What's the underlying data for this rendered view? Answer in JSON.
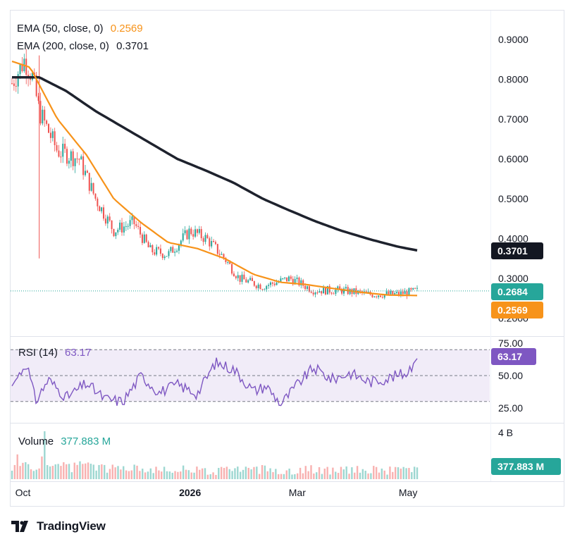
{
  "chart_data": [
    {
      "type": "candlestick",
      "panel": "price",
      "yaxis_ticks": [
        "0.9000",
        "0.8000",
        "0.7000",
        "0.6000",
        "0.5000",
        "0.4000",
        "0.3000",
        "0.2000"
      ],
      "ylim": [
        0.2,
        0.9
      ],
      "last_price": 0.2684,
      "last_price_label": "0.2684",
      "series": [
        {
          "name": "EMA (50, close, 0)",
          "label": "EMA (50, close, 0)",
          "value_label": "0.2569",
          "value": 0.2569,
          "color": "#f7931a",
          "x": [
            "2025-09-25",
            "2025-10-05",
            "2025-10-20",
            "2025-11-05",
            "2025-11-20",
            "2025-12-05",
            "2025-12-20",
            "2026-01-05",
            "2026-01-20",
            "2026-02-05",
            "2026-02-20",
            "2026-03-05",
            "2026-03-20",
            "2026-04-05",
            "2026-04-20",
            "2026-05-06"
          ],
          "values": [
            0.845,
            0.83,
            0.7,
            0.61,
            0.5,
            0.44,
            0.39,
            0.375,
            0.35,
            0.31,
            0.29,
            0.285,
            0.275,
            0.265,
            0.258,
            0.2569
          ]
        },
        {
          "name": "EMA (200, close, 0)",
          "label": "EMA (200, close, 0)",
          "value_label": "0.3701",
          "value": 0.3701,
          "color": "#1e222d",
          "x": [
            "2025-09-25",
            "2025-10-10",
            "2025-10-25",
            "2025-11-10",
            "2025-11-25",
            "2025-12-10",
            "2025-12-25",
            "2026-01-10",
            "2026-01-25",
            "2026-02-10",
            "2026-02-25",
            "2026-03-10",
            "2026-03-25",
            "2026-04-10",
            "2026-04-25",
            "2026-05-06"
          ],
          "values": [
            0.805,
            0.805,
            0.77,
            0.72,
            0.68,
            0.64,
            0.6,
            0.57,
            0.54,
            0.5,
            0.47,
            0.445,
            0.42,
            0.398,
            0.38,
            0.3701
          ]
        }
      ],
      "candles_summary": {
        "x": [
          "2025-09-25",
          "2025-10-02",
          "2025-10-06",
          "2025-10-10",
          "2025-10-20",
          "2025-11-01",
          "2025-11-10",
          "2025-11-20",
          "2025-12-01",
          "2025-12-10",
          "2025-12-20",
          "2026-01-01",
          "2026-01-10",
          "2026-01-20",
          "2026-01-28",
          "2026-02-10",
          "2026-02-25",
          "2026-03-10",
          "2026-03-25",
          "2026-04-10",
          "2026-04-25",
          "2026-05-06"
        ],
        "close": [
          0.79,
          0.85,
          0.81,
          0.72,
          0.62,
          0.6,
          0.5,
          0.42,
          0.44,
          0.37,
          0.36,
          0.42,
          0.4,
          0.35,
          0.3,
          0.28,
          0.3,
          0.27,
          0.27,
          0.26,
          0.26,
          0.2684
        ]
      },
      "legend_position": "top-left"
    },
    {
      "type": "line",
      "panel": "rsi",
      "title": "RSI (14)",
      "value_label": "63.17",
      "value": 63.17,
      "color": "#7e57c2",
      "yaxis_ticks": [
        "75.00",
        "50.00",
        "25.00"
      ],
      "ylim": [
        25,
        75
      ],
      "band": [
        30,
        70
      ],
      "x": [
        "2025-09-25",
        "2025-10-03",
        "2025-10-08",
        "2025-10-15",
        "2025-10-25",
        "2025-11-05",
        "2025-11-15",
        "2025-11-25",
        "2025-12-05",
        "2025-12-15",
        "2025-12-25",
        "2026-01-05",
        "2026-01-15",
        "2026-01-25",
        "2026-02-05",
        "2026-02-12",
        "2026-02-20",
        "2026-03-01",
        "2026-03-10",
        "2026-03-20",
        "2026-03-30",
        "2026-04-10",
        "2026-04-20",
        "2026-04-30",
        "2026-05-06"
      ],
      "values": [
        42,
        60,
        30,
        47,
        33,
        44,
        32,
        30,
        50,
        37,
        43,
        36,
        60,
        55,
        38,
        42,
        28,
        43,
        56,
        47,
        52,
        45,
        48,
        52,
        63.17
      ]
    },
    {
      "type": "bar",
      "panel": "volume",
      "title": "Volume",
      "value_label": "377.883 M",
      "value": 377.883,
      "unit": "M",
      "tag_label": "377.883 M",
      "yaxis_ticks": [
        "4 B"
      ],
      "color_up": "#26a69a",
      "color_down": "#ef5350"
    }
  ],
  "xaxis": {
    "labels": [
      {
        "text": "Oct",
        "date": "2025-10-01",
        "bold": false
      },
      {
        "text": "2026",
        "date": "2026-01-01",
        "bold": true
      },
      {
        "text": "Mar",
        "date": "2026-03-01",
        "bold": false
      },
      {
        "text": "May",
        "date": "2026-05-01",
        "bold": false
      }
    ]
  },
  "branding": {
    "logo_text": "TradingView"
  }
}
